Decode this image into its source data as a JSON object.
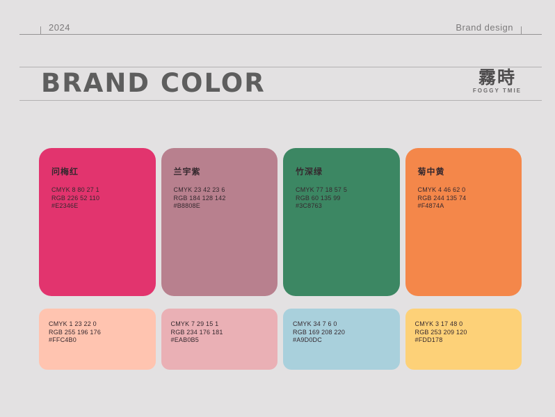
{
  "header": {
    "year": "2024",
    "label": "Brand design"
  },
  "title": "BRAND COLOR",
  "logo": {
    "cn": "霧時",
    "en": "FOGGY TMIE"
  },
  "palette": {
    "main": [
      {
        "name": "问梅红",
        "cmyk": "CMYK 8 80 27 1",
        "rgb": "RGB 226 52 110",
        "hex": "#E2346E"
      },
      {
        "name": "兰宇紫",
        "cmyk": "CMYK 23 42 23 6",
        "rgb": "RGB 184 128 142",
        "hex": "#B8808E"
      },
      {
        "name": "竹深绿",
        "cmyk": "CMYK 77 18 57 5",
        "rgb": "RGB 60 135 99",
        "hex": "#3C8763"
      },
      {
        "name": "菊中黄",
        "cmyk": "CMYK 4 46 62 0",
        "rgb": "RGB 244 135 74",
        "hex": "#F4874A"
      }
    ],
    "secondary": [
      {
        "cmyk": "CMYK 1 23 22 0",
        "rgb": "RGB 255 196 176",
        "hex": "#FFC4B0"
      },
      {
        "cmyk": "CMYK 7 29 15 1",
        "rgb": "RGB 234 176 181",
        "hex": "#EAB0B5"
      },
      {
        "cmyk": "CMYK 34 7 6 0",
        "rgb": "RGB 169 208 220",
        "hex": "#A9D0DC"
      },
      {
        "cmyk": "CMYK 3 17 48 0",
        "rgb": "RGB 253 209 120",
        "hex": "#FDD178"
      }
    ]
  },
  "colors": {
    "background": "#E3E1E2",
    "title_text": "#5E5E5E",
    "rule_line": "#949293",
    "muted_text": "#7C7A7B",
    "card_text": "#35282E"
  }
}
